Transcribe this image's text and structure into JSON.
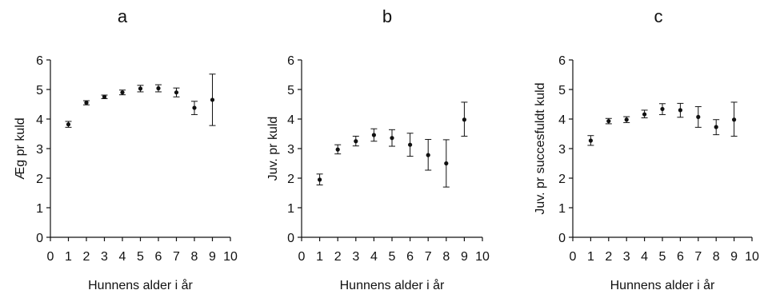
{
  "chart_data": [
    {
      "type": "scatter",
      "panel_label": "a",
      "title": "",
      "xlabel": "Hunnens alder i år",
      "ylabel": "Æg pr kuld",
      "xlim": [
        0,
        10
      ],
      "ylim": [
        0,
        6
      ],
      "xticks": [
        0,
        1,
        2,
        3,
        4,
        5,
        6,
        7,
        8,
        9,
        10
      ],
      "yticks": [
        0,
        1,
        2,
        3,
        4,
        5,
        6
      ],
      "grid": false,
      "series": [
        {
          "x": [
            1,
            2,
            3,
            4,
            5,
            6,
            7,
            8,
            9
          ],
          "y": [
            3.82,
            4.55,
            4.75,
            4.9,
            5.03,
            5.04,
            4.9,
            4.38,
            4.65
          ],
          "err_low": [
            3.72,
            4.48,
            4.69,
            4.82,
            4.92,
            4.92,
            4.75,
            4.15,
            3.78
          ],
          "err_high": [
            3.92,
            4.62,
            4.81,
            4.98,
            5.14,
            5.16,
            5.05,
            4.6,
            5.52
          ]
        }
      ]
    },
    {
      "type": "scatter",
      "panel_label": "b",
      "title": "",
      "xlabel": "Hunnens alder i år",
      "ylabel": "Juv. pr kuld",
      "xlim": [
        0,
        10
      ],
      "ylim": [
        0,
        6
      ],
      "xticks": [
        0,
        1,
        2,
        3,
        4,
        5,
        6,
        7,
        8,
        9,
        10
      ],
      "yticks": [
        0,
        1,
        2,
        3,
        4,
        5,
        6
      ],
      "grid": false,
      "series": [
        {
          "x": [
            1,
            2,
            3,
            4,
            5,
            6,
            7,
            8,
            9
          ],
          "y": [
            1.95,
            2.97,
            3.25,
            3.46,
            3.36,
            3.13,
            2.78,
            2.5,
            3.98
          ],
          "err_low": [
            1.77,
            2.82,
            3.09,
            3.25,
            3.08,
            2.74,
            2.27,
            1.7,
            3.42
          ],
          "err_high": [
            2.14,
            3.13,
            3.42,
            3.67,
            3.64,
            3.52,
            3.31,
            3.3,
            4.57
          ]
        }
      ]
    },
    {
      "type": "scatter",
      "panel_label": "c",
      "title": "",
      "xlabel": "Hunnens alder i år",
      "ylabel": "Juv. pr succesfuldt kuld",
      "xlim": [
        0,
        10
      ],
      "ylim": [
        0,
        6
      ],
      "xticks": [
        0,
        1,
        2,
        3,
        4,
        5,
        6,
        7,
        8,
        9,
        10
      ],
      "yticks": [
        0,
        1,
        2,
        3,
        4,
        5,
        6
      ],
      "grid": false,
      "series": [
        {
          "x": [
            1,
            2,
            3,
            4,
            5,
            6,
            7,
            8,
            9
          ],
          "y": [
            3.27,
            3.93,
            3.98,
            4.16,
            4.34,
            4.3,
            4.07,
            3.73,
            3.98
          ],
          "err_low": [
            3.11,
            3.84,
            3.88,
            4.04,
            4.15,
            4.06,
            3.72,
            3.47,
            3.42
          ],
          "err_high": [
            3.44,
            4.02,
            4.08,
            4.3,
            4.52,
            4.53,
            4.42,
            3.98,
            4.57
          ]
        }
      ]
    }
  ]
}
